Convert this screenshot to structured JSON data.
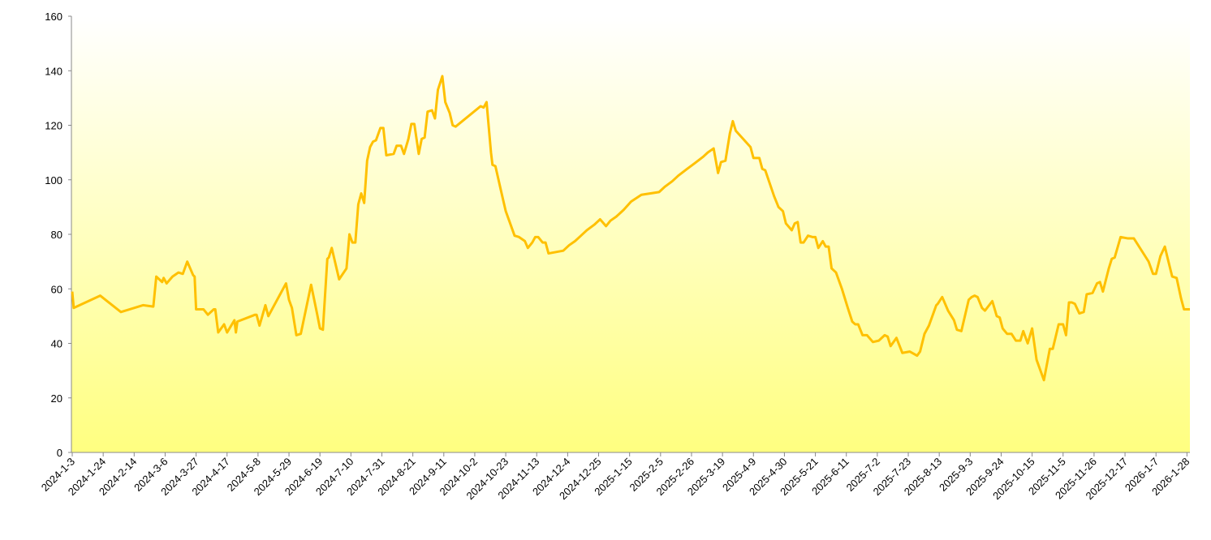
{
  "chart_data": {
    "type": "line",
    "color": "#ffc000",
    "x": [
      "2024-1-3",
      "2024-1-4",
      "2024-1-22",
      "2024-2-5",
      "2024-2-20",
      "2024-2-27",
      "2024-2-29",
      "2024-3-4",
      "2024-3-5",
      "2024-3-7",
      "2024-3-11",
      "2024-3-15",
      "2024-3-18",
      "2024-3-21",
      "2024-3-25",
      "2024-3-26",
      "2024-3-27",
      "2024-4-1",
      "2024-4-4",
      "2024-4-8",
      "2024-4-9",
      "2024-4-11",
      "2024-4-15",
      "2024-4-17",
      "2024-4-22",
      "2024-4-23",
      "2024-4-24",
      "2024-5-6",
      "2024-5-7",
      "2024-5-9",
      "2024-5-13",
      "2024-5-15",
      "2024-5-27",
      "2024-5-29",
      "2024-5-31",
      "2024-6-3",
      "2024-6-6",
      "2024-6-13",
      "2024-6-17",
      "2024-6-19",
      "2024-6-21",
      "2024-6-24",
      "2024-6-25",
      "2024-6-27",
      "2024-7-2",
      "2024-7-7",
      "2024-7-9",
      "2024-7-11",
      "2024-7-13",
      "2024-7-15",
      "2024-7-17",
      "2024-7-19",
      "2024-7-21",
      "2024-7-23",
      "2024-7-25",
      "2024-7-27",
      "2024-7-30",
      "2024-8-1",
      "2024-8-3",
      "2024-8-8",
      "2024-8-10",
      "2024-8-13",
      "2024-8-15",
      "2024-8-18",
      "2024-8-20",
      "2024-8-22",
      "2024-8-25",
      "2024-8-27",
      "2024-8-29",
      "2024-8-31",
      "2024-9-3",
      "2024-9-5",
      "2024-9-7",
      "2024-9-10",
      "2024-9-12",
      "2024-9-15",
      "2024-9-17",
      "2024-9-19",
      "2024-10-6",
      "2024-10-8",
      "2024-10-10",
      "2024-10-13",
      "2024-10-14",
      "2024-10-16",
      "2024-10-20",
      "2024-10-23",
      "2024-10-29",
      "2024-11-1",
      "2024-11-5",
      "2024-11-7",
      "2024-11-10",
      "2024-11-12",
      "2024-11-14",
      "2024-11-17",
      "2024-11-19",
      "2024-11-21",
      "2024-12-1",
      "2024-12-5",
      "2024-12-9",
      "2024-12-13",
      "2024-12-17",
      "2024-12-22",
      "2024-12-26",
      "2024-12-30",
      "2025-1-2",
      "2025-1-6",
      "2025-1-11",
      "2025-1-16",
      "2025-1-23",
      "2025-2-4",
      "2025-2-8",
      "2025-2-13",
      "2025-2-17",
      "2025-2-23",
      "2025-2-28",
      "2025-3-6",
      "2025-3-9",
      "2025-3-13",
      "2025-3-16",
      "2025-3-18",
      "2025-3-21",
      "2025-3-24",
      "2025-3-26",
      "2025-3-28",
      "2025-4-7",
      "2025-4-9",
      "2025-4-13",
      "2025-4-15",
      "2025-4-17",
      "2025-4-23",
      "2025-4-26",
      "2025-4-29",
      "2025-5-1",
      "2025-5-5",
      "2025-5-7",
      "2025-5-9",
      "2025-5-11",
      "2025-5-13",
      "2025-5-16",
      "2025-5-19",
      "2025-5-21",
      "2025-5-23",
      "2025-5-26",
      "2025-5-28",
      "2025-5-30",
      "2025-6-1",
      "2025-6-4",
      "2025-6-8",
      "2025-6-12",
      "2025-6-15",
      "2025-6-17",
      "2025-6-19",
      "2025-6-22",
      "2025-6-25",
      "2025-6-29",
      "2025-7-3",
      "2025-7-7",
      "2025-7-9",
      "2025-7-11",
      "2025-7-15",
      "2025-7-19",
      "2025-7-24",
      "2025-7-29",
      "2025-7-31",
      "2025-8-3",
      "2025-8-6",
      "2025-8-11",
      "2025-8-12",
      "2025-8-15",
      "2025-8-19",
      "2025-8-23",
      "2025-8-25",
      "2025-8-28",
      "2025-9-2",
      "2025-9-4",
      "2025-9-6",
      "2025-9-8",
      "2025-9-11",
      "2025-9-13",
      "2025-9-18",
      "2025-9-21",
      "2025-9-23",
      "2025-9-25",
      "2025-9-28",
      "2025-10-1",
      "2025-10-4",
      "2025-10-7",
      "2025-10-9",
      "2025-10-12",
      "2025-10-15",
      "2025-10-18",
      "2025-10-23",
      "2025-10-27",
      "2025-10-29",
      "2025-11-2",
      "2025-11-5",
      "2025-11-7",
      "2025-11-9",
      "2025-11-11",
      "2025-11-13",
      "2025-11-16",
      "2025-11-19",
      "2025-11-21",
      "2025-11-25",
      "2025-11-28",
      "2025-11-30",
      "2025-12-2",
      "2025-12-6",
      "2025-12-8",
      "2025-12-10",
      "2025-12-14",
      "2025-12-19",
      "2025-12-23",
      "2026-1-2",
      "2026-1-5",
      "2026-1-7",
      "2026-1-10",
      "2026-1-13",
      "2026-1-15",
      "2026-1-18",
      "2026-1-21",
      "2026-1-24",
      "2026-1-26",
      "2026-1-30"
    ],
    "values": [
      59,
      53,
      57.5,
      51.5,
      54,
      53.5,
      64.5,
      62.5,
      64,
      62,
      64.5,
      66,
      65.5,
      70,
      65,
      64.5,
      52.5,
      52.5,
      50.5,
      52.5,
      52.5,
      44,
      47,
      44,
      48.5,
      44,
      48,
      50.5,
      50.5,
      46.5,
      54,
      50,
      62,
      56,
      53,
      43,
      43.5,
      61.5,
      51,
      45.5,
      45,
      71,
      71.5,
      75,
      63.5,
      67.5,
      80,
      77,
      77,
      91,
      95,
      91.5,
      107,
      112,
      114,
      114.5,
      119,
      119,
      109,
      109.5,
      112.5,
      112.5,
      109.5,
      115,
      120.5,
      120.5,
      109.5,
      115,
      115.5,
      125,
      125.5,
      122.5,
      133,
      138,
      128.5,
      124.5,
      120,
      119.5,
      127,
      126.5,
      128.5,
      110,
      105.5,
      105,
      95.5,
      88.5,
      79.5,
      79,
      77.5,
      75,
      77,
      79,
      79,
      77,
      77,
      73,
      74,
      76,
      77.5,
      79.5,
      81.5,
      83.5,
      85.5,
      83,
      85,
      86.5,
      89,
      92,
      94.5,
      95.5,
      97.5,
      99.5,
      101.5,
      104,
      106,
      108.5,
      110,
      111.5,
      102.5,
      106.5,
      107,
      117,
      121.5,
      118,
      112,
      108,
      108,
      104,
      103.5,
      94,
      90,
      88.5,
      84,
      81.5,
      84,
      84.5,
      77,
      77,
      79.5,
      79,
      79,
      75,
      77.5,
      75.5,
      75.5,
      67.5,
      66,
      60,
      53,
      48,
      47,
      47,
      43,
      43,
      40.5,
      41,
      43,
      42.5,
      39,
      42,
      36.5,
      37,
      35.5,
      37,
      43.5,
      46.5,
      54,
      54.5,
      57,
      52,
      48.5,
      45,
      44.5,
      56,
      57,
      57.5,
      57,
      53,
      52,
      55.5,
      50,
      49.5,
      45.5,
      43.5,
      43.5,
      41,
      41,
      44.5,
      40,
      45.5,
      34,
      26.5,
      38,
      38,
      47,
      47,
      43,
      55,
      55,
      54.5,
      51,
      51.5,
      58,
      58.5,
      62,
      62.5,
      59,
      67.5,
      71,
      71.5,
      79,
      78.5,
      78.5,
      70,
      65.5,
      65.5,
      72,
      75.5,
      71,
      64.5,
      64,
      56.5,
      52.5,
      52.5
    ],
    "xlim": [
      "2024-1-3",
      "2026-1-30"
    ],
    "xticks": [
      "2024-1-3",
      "2024-1-24",
      "2024-2-14",
      "2024-3-6",
      "2024-3-27",
      "2024-4-17",
      "2024-5-8",
      "2024-5-29",
      "2024-6-19",
      "2024-7-10",
      "2024-7-31",
      "2024-8-21",
      "2024-9-11",
      "2024-10-2",
      "2024-10-23",
      "2024-11-13",
      "2024-12-4",
      "2024-12-25",
      "2025-1-15",
      "2025-2-5",
      "2025-2-26",
      "2025-3-19",
      "2025-4-9",
      "2025-4-30",
      "2025-5-21",
      "2025-6-11",
      "2025-7-2",
      "2025-7-23",
      "2025-8-13",
      "2025-9-3",
      "2025-9-24",
      "2025-10-15",
      "2025-11-5",
      "2025-11-26",
      "2025-12-17",
      "2026-1-7",
      "2026-1-28"
    ],
    "ylim": [
      0,
      160
    ],
    "yticks": [
      0,
      20,
      40,
      60,
      80,
      100,
      120,
      140,
      160
    ],
    "grid": false
  }
}
